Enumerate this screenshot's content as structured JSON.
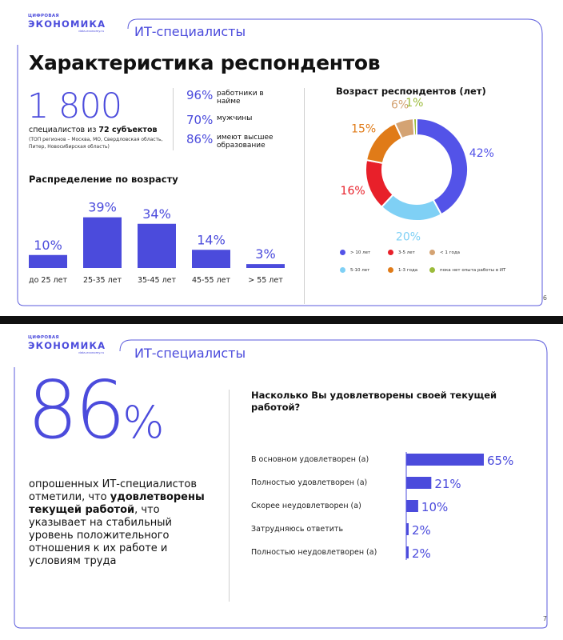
{
  "slide1": {
    "logo": {
      "top": "ЦИФРОВАЯ",
      "main": "ЭКОНОМИКА",
      "sub": "data-economy.ru"
    },
    "section_title": "ИТ-специалисты",
    "heading": "Характеристика респондентов",
    "respondents_count": "1 800",
    "count_line_prefix": "специалистов из ",
    "count_line_bold": "72 субъектов",
    "count_note": "(ТОП регионов – Москва, МО, Свердловская область, Питер, Новосибирская область)",
    "stats": [
      {
        "pct": "96%",
        "label": "работники в найме"
      },
      {
        "pct": "70%",
        "label": "мужчины"
      },
      {
        "pct": "86%",
        "label": "имеют высшее образование"
      }
    ],
    "age_dist_title": "Распределение по возрасту",
    "exp_title": "Возраст респондентов (лет)",
    "page_number": "6"
  },
  "slide2": {
    "logo": {
      "top": "ЦИФРОВАЯ",
      "main": "ЭКОНОМИКА",
      "sub": "data-economy.ru"
    },
    "section_title": "ИТ-специалисты",
    "big_number": "86",
    "big_pct_sign": "%",
    "para_before": "опрошенных ИТ-специалистов отметили, что ",
    "para_bold": "удовлетворены текущей работой",
    "para_after": ", что указывает на стабильный уровень положительного отношения к их работе и условиям труда",
    "question": "Насколько Вы удовлетворены своей текущей работой?",
    "page_number": "7"
  },
  "colors": {
    "accent": "#4b4bdc",
    "exp_gt10": "#5353e8",
    "exp_5_10": "#7fd0f5",
    "exp_3_5": "#e8202a",
    "exp_1_3": "#e07b18",
    "exp_lt1": "#d4a373",
    "exp_none": "#9bbb3a"
  },
  "chart_data": [
    {
      "type": "bar",
      "title": "Распределение по возрасту",
      "categories": [
        "до 25 лет",
        "25-35 лет",
        "35-45 лет",
        "45-55 лет",
        "> 55 лет"
      ],
      "values": [
        10,
        39,
        34,
        14,
        3
      ],
      "value_labels": [
        "10%",
        "39%",
        "34%",
        "14%",
        "3%"
      ],
      "ylim": [
        0,
        40
      ],
      "grid": false
    },
    {
      "type": "pie",
      "title": "Возраст респондентов (лет)",
      "donut": true,
      "slices": [
        {
          "label": "> 10 лет",
          "value": 42,
          "value_label": "42%",
          "color": "#5353e8"
        },
        {
          "label": "5-10 лет",
          "value": 20,
          "value_label": "20%",
          "color": "#7fd0f5"
        },
        {
          "label": "3-5 лет",
          "value": 16,
          "value_label": "16%",
          "color": "#e8202a"
        },
        {
          "label": "1-3 года",
          "value": 15,
          "value_label": "15%",
          "color": "#e07b18"
        },
        {
          "label": "< 1 года",
          "value": 6,
          "value_label": "6%",
          "color": "#d4a373"
        },
        {
          "label": "пока нет опыта работы в ИТ",
          "value": 1,
          "value_label": "1%",
          "color": "#9bbb3a"
        }
      ],
      "legend_position": "bottom"
    },
    {
      "type": "bar",
      "orientation": "horizontal",
      "title": "Насколько Вы удовлетворены своей текущей работой?",
      "categories": [
        "В основном удовлетворен (а)",
        "Полностью удовлетворен (а)",
        "Скорее неудовлетворен (а)",
        "Затрудняюсь ответить",
        "Полностью неудовлетворен (а)"
      ],
      "values": [
        65,
        21,
        10,
        2,
        2
      ],
      "value_labels": [
        "65%",
        "21%",
        "10%",
        "2%",
        "2%"
      ],
      "xlim": [
        0,
        65
      ],
      "grid": false
    }
  ]
}
